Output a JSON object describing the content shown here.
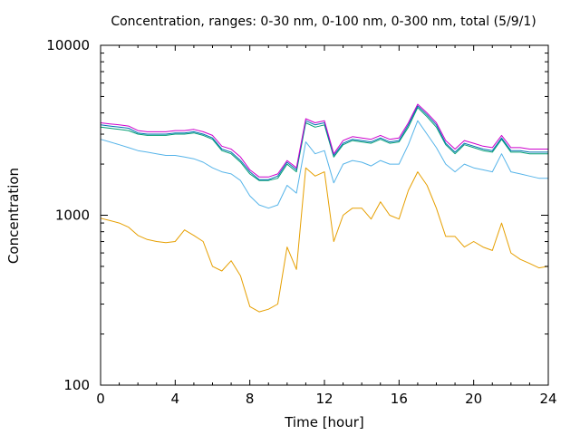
{
  "chart_data": {
    "type": "line",
    "title": "Concentration, ranges: 0-30 nm, 0-100 nm, 0-300 nm, total (5/9/1)",
    "xlabel": "Time [hour]",
    "ylabel": "Concentration",
    "xlim": [
      0,
      24
    ],
    "ylim": [
      100,
      10000
    ],
    "yscale": "log",
    "grid": false,
    "legend": "none",
    "x_ticks": [
      "0",
      "4",
      "8",
      "12",
      "16",
      "20",
      "24"
    ],
    "y_ticks": [
      "100",
      "1000",
      "10000"
    ],
    "x": [
      0,
      0.5,
      1,
      1.5,
      2,
      2.5,
      3,
      3.5,
      4,
      4.5,
      5,
      5.5,
      6,
      6.5,
      7,
      7.5,
      8,
      8.5,
      9,
      9.5,
      10,
      10.5,
      11,
      11.5,
      12,
      12.5,
      13,
      13.5,
      14,
      14.5,
      15,
      15.5,
      16,
      16.5,
      17,
      17.5,
      18,
      18.5,
      19,
      19.5,
      20,
      20.5,
      21,
      21.5,
      22,
      22.5,
      23,
      23.5,
      24
    ],
    "series": [
      {
        "color": "#e69f00",
        "values": [
          960,
          930,
          900,
          850,
          760,
          720,
          700,
          690,
          700,
          820,
          760,
          700,
          500,
          470,
          540,
          440,
          290,
          270,
          280,
          300,
          650,
          480,
          1900,
          1700,
          1800,
          700,
          1000,
          1100,
          1100,
          950,
          1200,
          1000,
          950,
          1400,
          1800,
          1500,
          1100,
          750,
          750,
          650,
          700,
          650,
          620,
          900,
          600,
          550,
          520,
          490,
          500
        ]
      },
      {
        "color": "#56b4e9",
        "values": [
          2800,
          2700,
          2600,
          2500,
          2400,
          2350,
          2300,
          2250,
          2250,
          2200,
          2150,
          2050,
          1900,
          1800,
          1750,
          1600,
          1300,
          1150,
          1100,
          1150,
          1500,
          1350,
          2700,
          2300,
          2400,
          1550,
          2000,
          2100,
          2050,
          1950,
          2100,
          2000,
          2000,
          2600,
          3600,
          3000,
          2500,
          2000,
          1800,
          2000,
          1900,
          1850,
          1800,
          2300,
          1800,
          1750,
          1700,
          1650,
          1650
        ]
      },
      {
        "color": "#009e73",
        "values": [
          3300,
          3250,
          3200,
          3150,
          3000,
          2950,
          2950,
          2950,
          3000,
          3000,
          3050,
          2950,
          2800,
          2400,
          2300,
          2050,
          1750,
          1600,
          1600,
          1650,
          2000,
          1800,
          3500,
          3300,
          3400,
          2200,
          2600,
          2750,
          2700,
          2650,
          2800,
          2650,
          2700,
          3300,
          4300,
          3800,
          3300,
          2600,
          2300,
          2600,
          2500,
          2400,
          2350,
          2800,
          2350,
          2350,
          2300,
          2300,
          2300
        ]
      },
      {
        "color": "#0072b2",
        "values": [
          3400,
          3350,
          3300,
          3250,
          3050,
          3000,
          3000,
          3000,
          3050,
          3050,
          3100,
          3000,
          2850,
          2450,
          2350,
          2100,
          1800,
          1620,
          1620,
          1700,
          2050,
          1850,
          3600,
          3400,
          3500,
          2250,
          2650,
          2800,
          2750,
          2700,
          2850,
          2700,
          2750,
          3400,
          4400,
          3900,
          3400,
          2650,
          2350,
          2650,
          2550,
          2450,
          2400,
          2850,
          2400,
          2400,
          2350,
          2350,
          2350
        ]
      },
      {
        "color": "#cc00cc",
        "values": [
          3500,
          3450,
          3400,
          3350,
          3150,
          3100,
          3100,
          3100,
          3150,
          3150,
          3200,
          3100,
          2950,
          2550,
          2450,
          2200,
          1850,
          1680,
          1680,
          1750,
          2100,
          1900,
          3700,
          3500,
          3600,
          2300,
          2750,
          2900,
          2850,
          2800,
          2950,
          2800,
          2850,
          3500,
          4500,
          4000,
          3500,
          2750,
          2450,
          2750,
          2650,
          2550,
          2500,
          2950,
          2500,
          2500,
          2450,
          2450,
          2450
        ]
      }
    ]
  }
}
